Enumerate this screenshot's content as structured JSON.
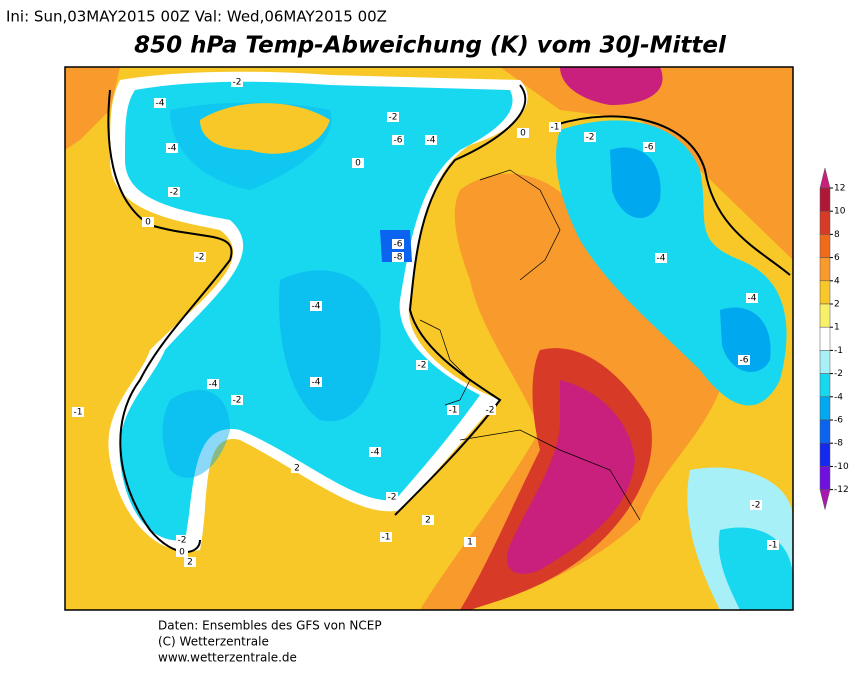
{
  "header": {
    "init": "Ini: Sun,03MAY2015 00Z Val: Wed,06MAY2015 00Z",
    "title": "850 hPa Temp-Abweichung (K) vom 30J-Mittel"
  },
  "colorbar": {
    "levels": [
      12,
      10,
      8,
      6,
      4,
      2,
      1,
      -1,
      -2,
      -4,
      -6,
      -8,
      -10,
      -12
    ],
    "colors": [
      "#c8207c",
      "#b01838",
      "#d83a28",
      "#f06a1c",
      "#f89a2c",
      "#f8c828",
      "#f8f068",
      "#ffffff",
      "#a8f0f8",
      "#18d8f0",
      "#00a8f0",
      "#0a64f0",
      "#1428f0",
      "#7010e0",
      "#a818b0"
    ]
  },
  "map": {
    "contour_labels": [
      "-4",
      "-2",
      "-4",
      "-2",
      "0",
      "-2",
      "-4",
      "-4",
      "-4",
      "-2",
      "-4",
      "-2",
      "-1",
      "2",
      "-6",
      "-4",
      "-6",
      "-8",
      "-2",
      "-2",
      "-1",
      "2",
      "-2",
      "0",
      "2",
      "-4",
      "-6",
      "-2",
      "-1",
      "0",
      "-6",
      "-4",
      "-2",
      "-1",
      "1",
      "-1",
      "-2",
      "0"
    ]
  },
  "footer": {
    "lines": [
      "Daten: Ensembles des GFS von NCEP",
      "(C) Wetterzentrale",
      "www.wetterzentrale.de"
    ]
  }
}
